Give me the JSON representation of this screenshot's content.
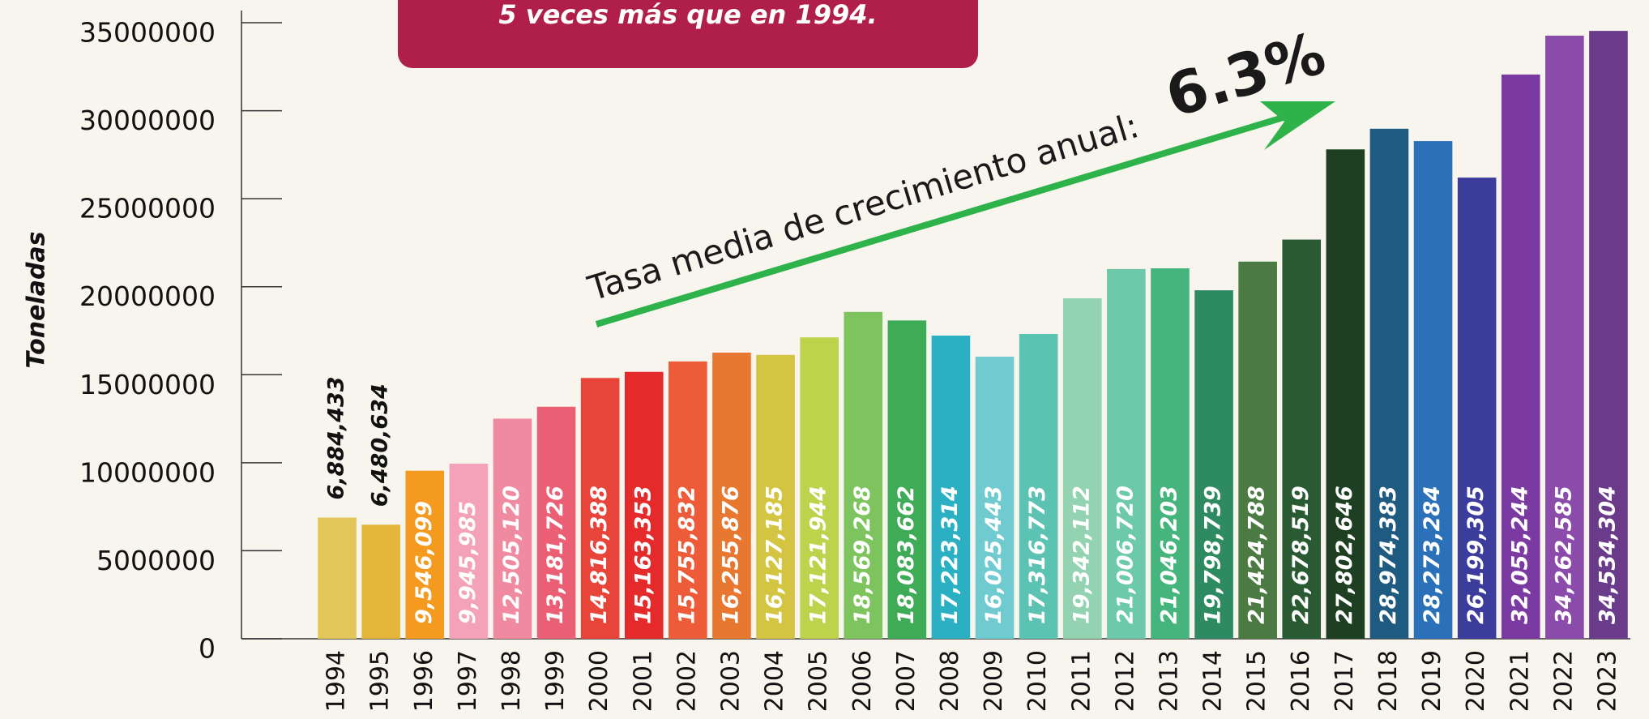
{
  "chart_data": {
    "type": "bar",
    "title": "5 veces más que en 1994.",
    "y_label": "Toneladas",
    "annotation": "Tasa media de crecimiento anual:",
    "annotation_value": "6.3%",
    "categories": [
      "1994",
      "1995",
      "1996",
      "1997",
      "1998",
      "1999",
      "2000",
      "2001",
      "2002",
      "2003",
      "2004",
      "2005",
      "2006",
      "2007",
      "2008",
      "2009",
      "2010",
      "2011",
      "2012",
      "2013",
      "2014",
      "2015",
      "2016",
      "2017",
      "2018",
      "2019",
      "2020",
      "2021",
      "2022",
      "2023"
    ],
    "values": [
      6884433,
      6480634,
      9546099,
      9945985,
      12505120,
      13181726,
      14816388,
      15163353,
      15755832,
      16255876,
      16127185,
      17121944,
      18569268,
      18083662,
      17223314,
      16025443,
      17316773,
      19342112,
      21006720,
      21046203,
      19798739,
      21424788,
      22678519,
      27802646,
      28974383,
      28273284,
      26199305,
      32055244,
      34262585,
      34534304
    ],
    "value_labels": [
      "6,884,433",
      "6,480,634",
      "9,546,099",
      "9,945,985",
      "12,505,120",
      "13,181,726",
      "14,816,388",
      "15,163,353",
      "15,755,832",
      "16,255,876",
      "16,127,185",
      "17,121,944",
      "18,569,268",
      "18,083,662",
      "17,223,314",
      "16,025,443",
      "17,316,773",
      "19,342,112",
      "21,006,720",
      "21,046,203",
      "19,798,739",
      "21,424,788",
      "22,678,519",
      "27,802,646",
      "28,974,383",
      "28,273,284",
      "26,199,305",
      "32,055,244",
      "34,262,585",
      "34,534,304"
    ],
    "colors": [
      "#e2c65a",
      "#e4b73a",
      "#f39a1f",
      "#f3a2ba",
      "#ef8aa0",
      "#ea5f74",
      "#e8443a",
      "#e52a2c",
      "#ee5b39",
      "#e8772f",
      "#d3c441",
      "#bcd34b",
      "#7ec45e",
      "#3eab56",
      "#2bb0c3",
      "#70cbd1",
      "#5cc2b2",
      "#93d3b2",
      "#6cc9a9",
      "#46b47d",
      "#2e8b61",
      "#4b7b43",
      "#295a31",
      "#1e3f21",
      "#1f5a80",
      "#2b71b9",
      "#3b3c9b",
      "#7a3aa2",
      "#8b4bab",
      "#6b3b8b"
    ],
    "ylim": [
      0,
      35000000
    ],
    "yticks": [
      0,
      5000000,
      10000000,
      15000000,
      20000000,
      25000000,
      30000000,
      35000000
    ]
  }
}
